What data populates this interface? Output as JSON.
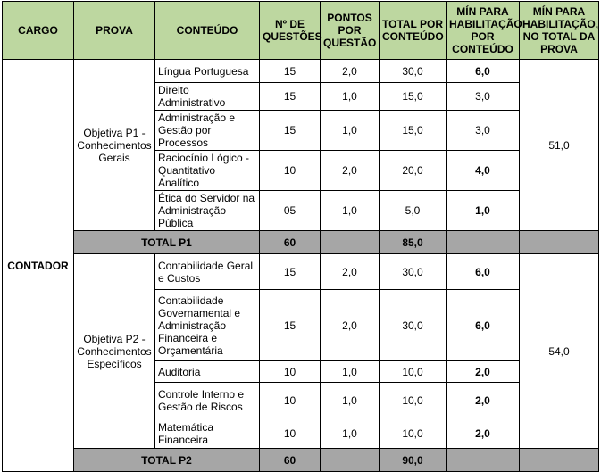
{
  "headers": {
    "cargo": "CARGO",
    "prova": "PROVA",
    "conteudo": "CONTEÚDO",
    "num_questoes": "Nº DE QUESTÕES",
    "pontos": "PONTOS POR QUESTÃO",
    "total": "TOTAL POR CONTEÚDO",
    "min_conteudo": "MÍN PARA HABILITAÇÃO POR CONTEÚDO",
    "min_total": "MÍN PARA HABILITAÇÃO, NO TOTAL DA PROVA"
  },
  "cargo": "CONTADOR",
  "p1": {
    "prova": "Objetiva P1 - Conhecimentos Gerais",
    "min_total": "51,0",
    "rows": [
      {
        "conteudo": "Língua Portuguesa",
        "questoes": "15",
        "pontos": "2,0",
        "total": "30,0",
        "minimo": "6,0"
      },
      {
        "conteudo": "Direito Administrativo",
        "questoes": "15",
        "pontos": "1,0",
        "total": "15,0",
        "minimo": "3,0"
      },
      {
        "conteudo": "Administração e Gestão por Processos",
        "questoes": "15",
        "pontos": "1,0",
        "total": "15,0",
        "minimo": "3,0"
      },
      {
        "conteudo": "Raciocínio Lógico - Quantitativo Analítico",
        "questoes": "10",
        "pontos": "2,0",
        "total": "20,0",
        "minimo": "4,0"
      },
      {
        "conteudo": "Ética do Servidor na Administração Pública",
        "questoes": "05",
        "pontos": "1,0",
        "total": "5,0",
        "minimo": "1,0"
      }
    ],
    "total_label": "TOTAL P1",
    "total_questoes": "60",
    "total_pontos": "85,0"
  },
  "p2": {
    "prova": "Objetiva P2 - Conhecimentos Específicos",
    "min_total": "54,0",
    "rows": [
      {
        "conteudo": "Contabilidade Geral e Custos",
        "questoes": "15",
        "pontos": "2,0",
        "total": "30,0",
        "minimo": "6,0"
      },
      {
        "conteudo": "Contabilidade Governamental e Administração Financeira e Orçamentária",
        "questoes": "15",
        "pontos": "2,0",
        "total": "30,0",
        "minimo": "6,0"
      },
      {
        "conteudo": "Auditoria",
        "questoes": "10",
        "pontos": "1,0",
        "total": "10,0",
        "minimo": "2,0"
      },
      {
        "conteudo": "Controle Interno e Gestão de Riscos",
        "questoes": "10",
        "pontos": "1,0",
        "total": "10,0",
        "minimo": "2,0"
      },
      {
        "conteudo": "Matemática Financeira",
        "questoes": "10",
        "pontos": "1,0",
        "total": "10,0",
        "minimo": "2,0"
      }
    ],
    "total_label": "TOTAL P2",
    "total_questoes": "60",
    "total_pontos": "90,0"
  }
}
